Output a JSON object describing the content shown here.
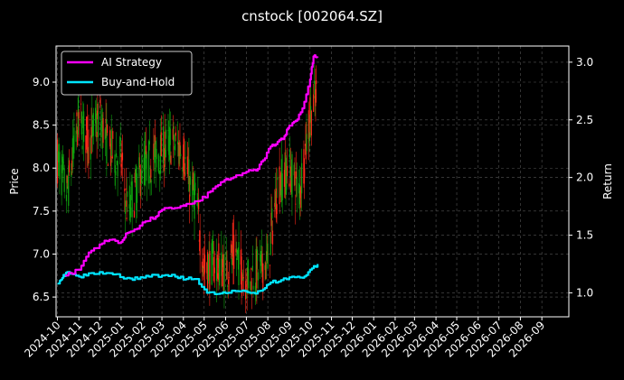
{
  "chart_data": {
    "type": "line",
    "title": "cnstock [002064.SZ]",
    "ylabel_left": "Price",
    "ylabel_right": "Return",
    "ylim_left": [
      6.27,
      9.42
    ],
    "ylim_right": [
      0.792,
      3.14
    ],
    "left_ticks": [
      "6.5",
      "7.0",
      "7.5",
      "8.0",
      "8.5",
      "9.0"
    ],
    "right_ticks": [
      "1.0",
      "1.5",
      "2.0",
      "2.5",
      "3.0"
    ],
    "x_ticks": [
      "2024-10",
      "2024-11",
      "2024-12",
      "2025-01",
      "2025-02",
      "2025-03",
      "2025-04",
      "2025-05",
      "2025-06",
      "2025-07",
      "2025-08",
      "2025-09",
      "2025-10",
      "2025-11",
      "2025-12",
      "2026-01",
      "2026-02",
      "2026-03",
      "2026-04",
      "2026-05",
      "2026-06",
      "2026-07",
      "2026-08",
      "2026-09"
    ],
    "grid": true,
    "legend_position": "top-left",
    "colors": {
      "ai": "#ff00ff",
      "bh": "#00e5ff",
      "up": "#ff2a1a",
      "down": "#0ea50e",
      "grid": "#555555",
      "axis": "#ffffff"
    },
    "series": [
      {
        "name": "AI Strategy",
        "axis": "right",
        "x": [
          "2024-10-12",
          "2024-11-01",
          "2024-11-15",
          "2024-12-01",
          "2024-12-15",
          "2025-01-01",
          "2025-01-10",
          "2025-01-20",
          "2025-02-05",
          "2025-02-20",
          "2025-03-01",
          "2025-03-15",
          "2025-04-01",
          "2025-04-10",
          "2025-04-25",
          "2025-05-10",
          "2025-05-25",
          "2025-06-05",
          "2025-06-20",
          "2025-07-01",
          "2025-07-15",
          "2025-07-25",
          "2025-08-05",
          "2025-08-15",
          "2025-08-25",
          "2025-09-01",
          "2025-09-10",
          "2025-09-20",
          "2025-10-01",
          "2025-10-06",
          "2025-10-12"
        ],
        "values": [
          1.15,
          1.2,
          1.35,
          1.42,
          1.46,
          1.44,
          1.52,
          1.55,
          1.62,
          1.66,
          1.72,
          1.73,
          1.76,
          1.77,
          1.8,
          1.88,
          1.96,
          1.98,
          2.02,
          2.05,
          2.06,
          2.15,
          2.27,
          2.31,
          2.36,
          2.45,
          2.49,
          2.6,
          2.85,
          3.05,
          3.04
        ]
      },
      {
        "name": "Buy-and-Hold",
        "axis": "right",
        "x": [
          "2024-10-01",
          "2024-10-08",
          "2024-10-15",
          "2024-11-01",
          "2024-11-15",
          "2024-12-01",
          "2024-12-20",
          "2025-01-10",
          "2025-01-25",
          "2025-02-10",
          "2025-03-01",
          "2025-03-20",
          "2025-04-05",
          "2025-04-20",
          "2025-05-05",
          "2025-05-20",
          "2025-06-05",
          "2025-06-25",
          "2025-07-10",
          "2025-07-25",
          "2025-08-05",
          "2025-08-20",
          "2025-09-05",
          "2025-09-20",
          "2025-10-01",
          "2025-10-12"
        ],
        "values": [
          1.08,
          1.13,
          1.18,
          1.14,
          1.17,
          1.18,
          1.16,
          1.13,
          1.12,
          1.14,
          1.15,
          1.14,
          1.12,
          1.12,
          1.0,
          0.99,
          1.0,
          1.02,
          1.0,
          1.03,
          1.09,
          1.11,
          1.14,
          1.13,
          1.2,
          1.25
        ]
      },
      {
        "name": "Price",
        "axis": "left",
        "x": [
          "2024-10-01",
          "2024-10-15",
          "2024-11-01",
          "2024-11-15",
          "2024-12-01",
          "2024-12-15",
          "2025-01-01",
          "2025-01-10",
          "2025-01-20",
          "2025-02-01",
          "2025-02-15",
          "2025-03-01",
          "2025-03-15",
          "2025-04-01",
          "2025-04-10",
          "2025-04-20",
          "2025-05-01",
          "2025-05-15",
          "2025-06-01",
          "2025-06-15",
          "2025-07-01",
          "2025-07-15",
          "2025-08-01",
          "2025-08-15",
          "2025-09-01",
          "2025-09-15",
          "2025-10-01",
          "2025-10-12"
        ],
        "values": [
          8.1,
          7.7,
          8.6,
          8.3,
          8.6,
          8.2,
          8.1,
          7.5,
          7.7,
          8.0,
          8.1,
          8.2,
          8.3,
          8.2,
          7.8,
          7.6,
          6.8,
          6.9,
          6.8,
          7.0,
          6.7,
          6.8,
          6.9,
          7.8,
          8.0,
          7.7,
          8.6,
          8.9
        ]
      }
    ]
  }
}
